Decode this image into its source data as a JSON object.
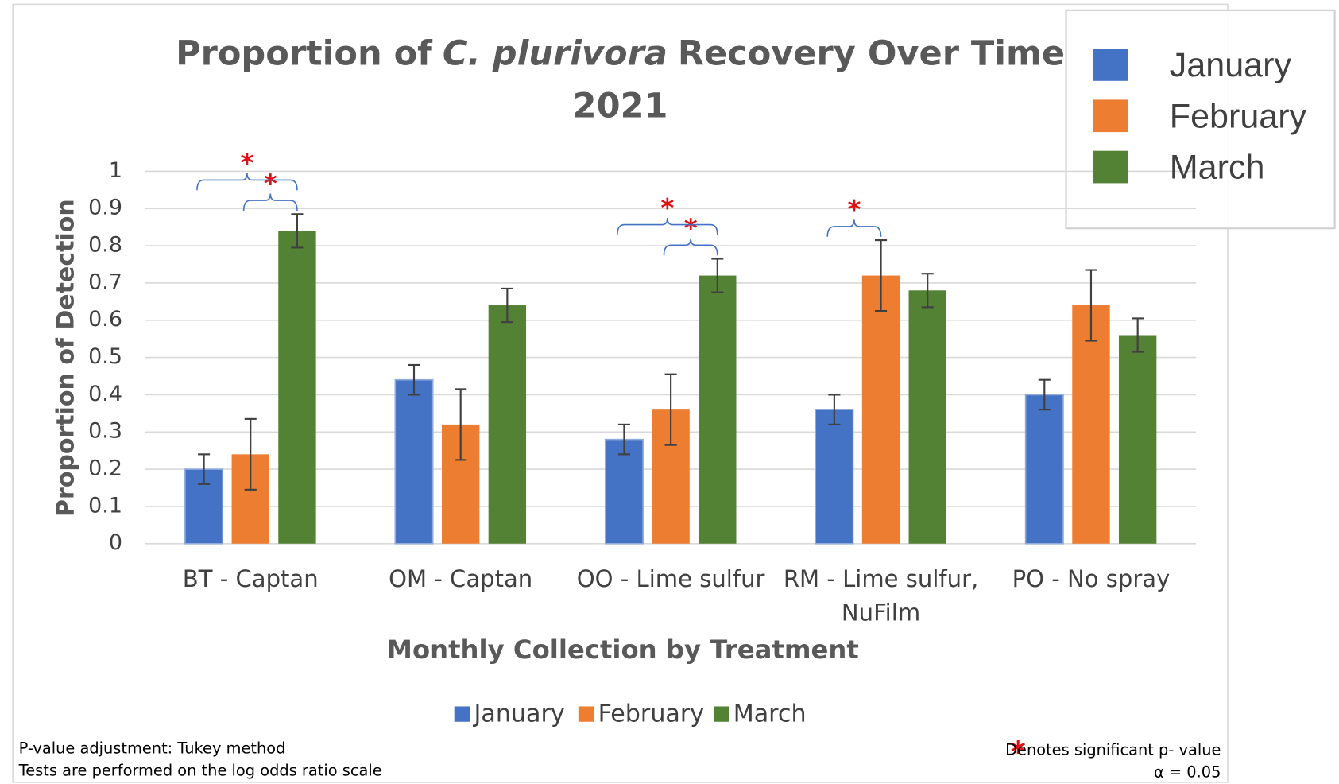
{
  "chart_data": {
    "type": "bar",
    "title": [
      "Proportion of",
      "C. plurivora",
      "Recovery Over Time",
      "2021"
    ],
    "x_label": "Monthly Collection by Treatment",
    "y_label": "Proportion of Detection",
    "categories": [
      "BT - Captan",
      "OM - Captan",
      "OO - Lime sulfur",
      "RM - Lime sulfur, NuFilm",
      "PO - No spray"
    ],
    "series": [
      {
        "name": "January",
        "color": "#4472c4",
        "values": [
          0.2,
          0.44,
          0.28,
          0.36,
          0.4
        ],
        "errors": [
          0.04,
          0.04,
          0.04,
          0.04,
          0.04
        ]
      },
      {
        "name": "February",
        "color": "#ed7d31",
        "values": [
          0.24,
          0.32,
          0.36,
          0.72,
          0.64
        ],
        "errors": [
          0.095,
          0.095,
          0.095,
          0.095,
          0.095
        ]
      },
      {
        "name": "March",
        "color": "#548235",
        "values": [
          0.84,
          0.64,
          0.72,
          0.68,
          0.56
        ],
        "errors": [
          0.045,
          0.045,
          0.045,
          0.045,
          0.045
        ]
      }
    ],
    "ylim": [
      0,
      1
    ],
    "yticks": [
      0,
      0.1,
      0.2,
      0.3,
      0.4,
      0.5,
      0.6,
      0.7,
      0.8,
      0.9,
      1
    ],
    "grid": true,
    "significance": [
      {
        "category": 0,
        "from": 1,
        "to": 2,
        "label": "*"
      },
      {
        "category": 0,
        "from": 0,
        "to": 2,
        "label": "*"
      },
      {
        "category": 2,
        "from": 1,
        "to": 2,
        "label": "*"
      },
      {
        "category": 2,
        "from": 0,
        "to": 2,
        "label": "*"
      },
      {
        "category": 3,
        "from": 0,
        "to": 1,
        "label": "*"
      }
    ],
    "notes": [
      "P-value adjustment: Tukey method",
      "Tests are performed on the log odds ratio scale"
    ],
    "key_symbol": "*",
    "key_text": "Denotes significant p- value",
    "alpha": "α = 0.05"
  }
}
